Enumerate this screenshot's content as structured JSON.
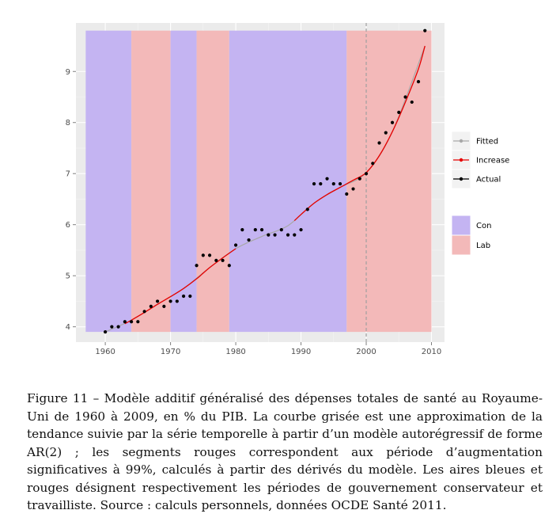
{
  "chart_data": {
    "type": "line",
    "title": "",
    "xlabel": "",
    "ylabel": "",
    "xlim": [
      1955.5,
      2012
    ],
    "ylim": [
      3.7,
      9.95
    ],
    "x_ticks": [
      1960,
      1970,
      1980,
      1990,
      2000,
      2010
    ],
    "y_ticks": [
      4,
      5,
      6,
      7,
      8,
      9
    ],
    "grid": true,
    "vline_x": 2000,
    "periods": [
      {
        "party": "Con",
        "start": 1957,
        "end": 1964
      },
      {
        "party": "Lab",
        "start": 1964,
        "end": 1970
      },
      {
        "party": "Con",
        "start": 1970,
        "end": 1974
      },
      {
        "party": "Lab",
        "start": 1974,
        "end": 1979
      },
      {
        "party": "Con",
        "start": 1979,
        "end": 1997
      },
      {
        "party": "Lab",
        "start": 1997,
        "end": 2010
      }
    ],
    "period_band_y": [
      3.9,
      9.8
    ],
    "series": [
      {
        "name": "Actual",
        "x": [
          1960,
          1961,
          1962,
          1963,
          1964,
          1965,
          1966,
          1967,
          1968,
          1969,
          1970,
          1971,
          1972,
          1973,
          1974,
          1975,
          1976,
          1977,
          1978,
          1979,
          1980,
          1981,
          1982,
          1983,
          1984,
          1985,
          1986,
          1987,
          1988,
          1989,
          1990,
          1991,
          1992,
          1993,
          1994,
          1995,
          1996,
          1997,
          1998,
          1999,
          2000,
          2001,
          2002,
          2003,
          2004,
          2005,
          2006,
          2007,
          2008,
          2009
        ],
        "y": [
          3.9,
          4.0,
          4.0,
          4.1,
          4.1,
          4.1,
          4.3,
          4.4,
          4.5,
          4.4,
          4.5,
          4.5,
          4.6,
          4.6,
          5.2,
          5.4,
          5.4,
          5.3,
          5.3,
          5.2,
          5.6,
          5.9,
          5.7,
          5.9,
          5.9,
          5.8,
          5.8,
          5.9,
          5.8,
          5.8,
          5.9,
          6.3,
          6.8,
          6.8,
          6.9,
          6.8,
          6.8,
          6.6,
          6.7,
          6.9,
          7.0,
          7.2,
          7.6,
          7.8,
          8.0,
          8.2,
          8.5,
          8.4,
          8.8,
          9.8
        ]
      },
      {
        "name": "Fitted",
        "x": [
          1960,
          1964,
          1968,
          1972,
          1976,
          1980,
          1984,
          1988,
          1992,
          1996,
          2000,
          2004,
          2009
        ],
        "y": [
          3.9,
          4.13,
          4.44,
          4.75,
          5.16,
          5.53,
          5.77,
          5.98,
          6.42,
          6.73,
          7.02,
          7.82,
          9.5
        ]
      },
      {
        "name": "Increase",
        "segments": [
          {
            "x": [
              1963,
              1964,
              1966,
              1968,
              1970,
              1972,
              1974,
              1976,
              1978,
              1980
            ],
            "y": [
              4.06,
              4.13,
              4.28,
              4.44,
              4.59,
              4.75,
              4.94,
              5.16,
              5.35,
              5.53
            ]
          },
          {
            "x": [
              1989,
              1990,
              1992,
              1994,
              1996,
              1998,
              2000,
              2002,
              2004,
              2006,
              2008,
              2009
            ],
            "y": [
              6.08,
              6.2,
              6.42,
              6.59,
              6.73,
              6.87,
              7.02,
              7.35,
              7.82,
              8.4,
              9.05,
              9.5
            ]
          }
        ]
      }
    ],
    "legend": {
      "line_entries": [
        "Fitted",
        "Increase",
        "Actual"
      ],
      "fill_entries": [
        "Con",
        "Lab"
      ],
      "placement": "right"
    },
    "colors": {
      "panel_bg": "#ebebeb",
      "grid": "#ffffff",
      "con": "#c4b4f2",
      "lab": "#f3b9b9",
      "fitted": "#a8a8a8",
      "increase": "#e60000",
      "actual": "#000000",
      "vline": "#a0a0a0"
    }
  },
  "caption": {
    "text": "Figure 11 – Modèle additif généralisé des dépenses totales de santé au Royaume-Uni de 1960 à 2009, en % du PIB. La courbe grisée est une approximation de la tendance suivie par la série temporelle à partir d’un modèle autorégressif de forme AR(2) ; les segments rouges correspondent aux période d’augmentation significatives à 99%, calculés à partir des dérivés du modèle. Les aires bleues et rouges désignent respectivement les périodes de gouvernement conservateur et travailliste. Source : calculs personnels, données OCDE Santé 2011."
  }
}
